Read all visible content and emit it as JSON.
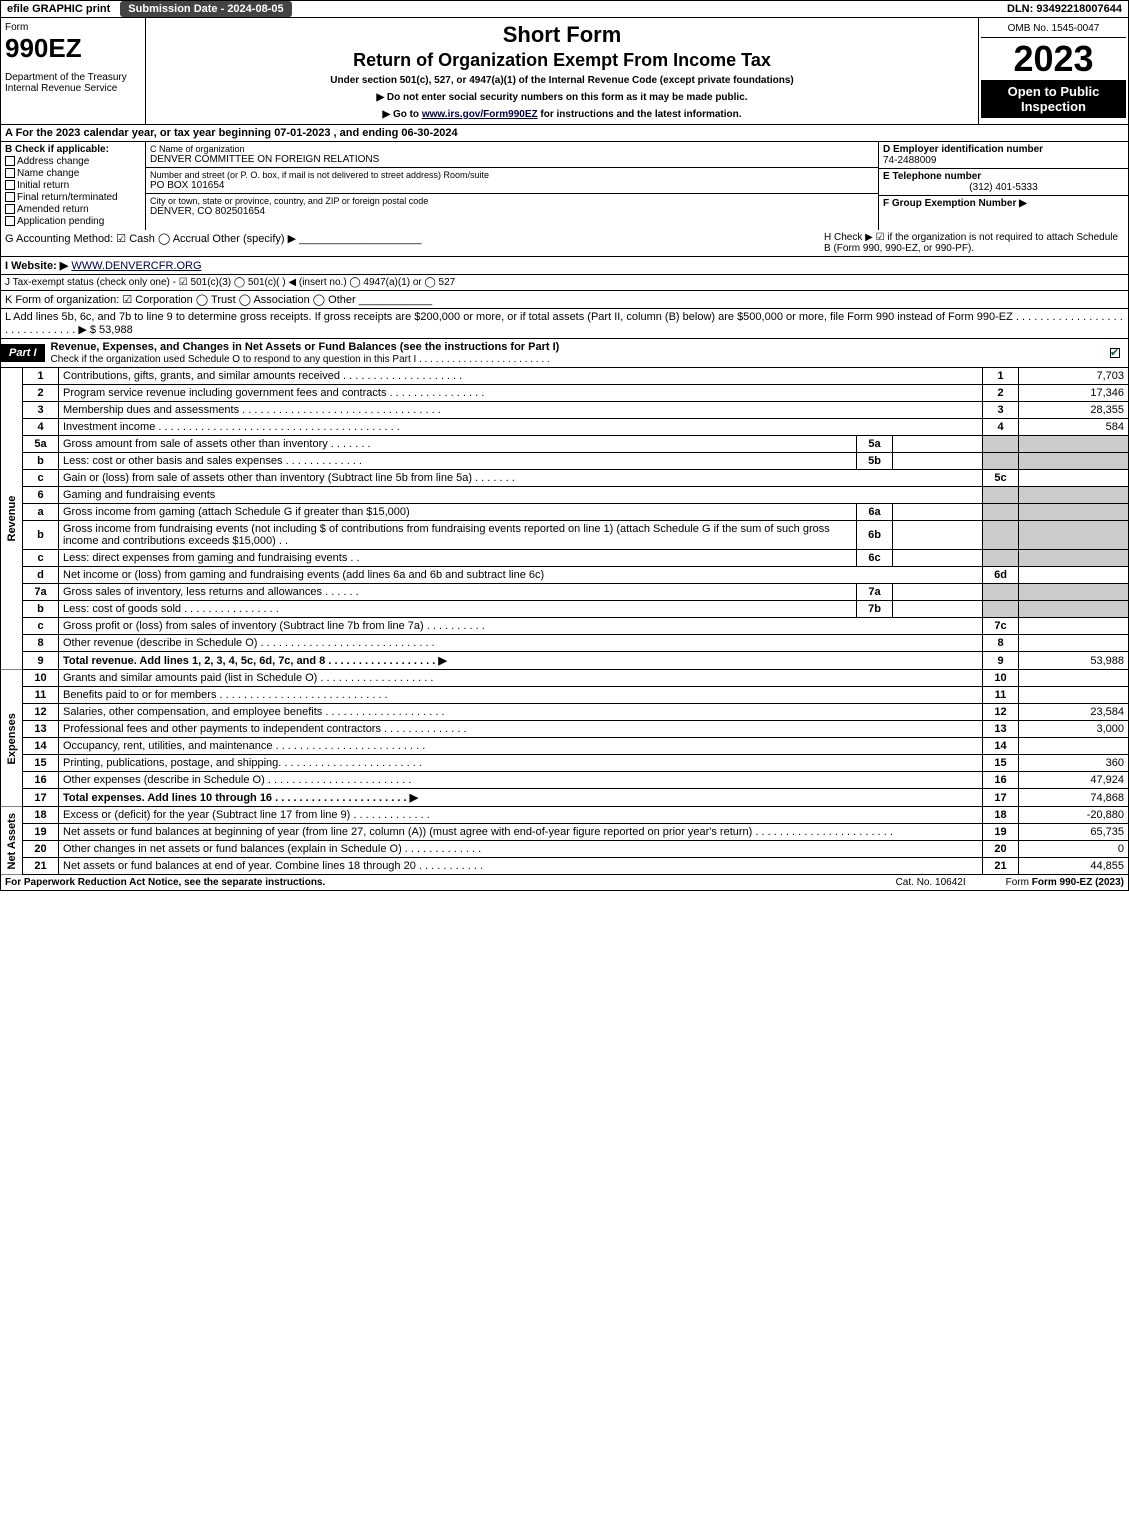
{
  "topbar": {
    "efile": "efile GRAPHIC print",
    "subdate": "Submission Date - 2024-08-05",
    "dln": "DLN: 93492218007644"
  },
  "header": {
    "form_label": "Form",
    "form_num": "990EZ",
    "dept": "Department of the Treasury\nInternal Revenue Service",
    "title1": "Short Form",
    "title2": "Return of Organization Exempt From Income Tax",
    "subtitle": "Under section 501(c), 527, or 4947(a)(1) of the Internal Revenue Code (except private foundations)",
    "instr1": "▶ Do not enter social security numbers on this form as it may be made public.",
    "instr2_pre": "▶ Go to ",
    "instr2_link": "www.irs.gov/Form990EZ",
    "instr2_post": " for instructions and the latest information.",
    "omb": "OMB No. 1545-0047",
    "year": "2023",
    "open": "Open to Public Inspection"
  },
  "section_a": "A  For the 2023 calendar year, or tax year beginning 07-01-2023 , and ending 06-30-2024",
  "col_b": {
    "title": "B  Check if applicable:",
    "opts": [
      "Address change",
      "Name change",
      "Initial return",
      "Final return/terminated",
      "Amended return",
      "Application pending"
    ]
  },
  "col_c": {
    "name_lbl": "C Name of organization",
    "name_val": "DENVER COMMITTEE ON FOREIGN RELATIONS",
    "addr_lbl": "Number and street (or P. O. box, if mail is not delivered to street address)      Room/suite",
    "addr_val": "PO BOX 101654",
    "city_lbl": "City or town, state or province, country, and ZIP or foreign postal code",
    "city_val": "DENVER, CO  802501654"
  },
  "col_de": {
    "d_lbl": "D Employer identification number",
    "d_val": "74-2488009",
    "e_lbl": "E Telephone number",
    "e_val": "(312) 401-5333",
    "f_lbl": "F Group Exemption Number  ▶"
  },
  "line_g": "G Accounting Method:   ☑ Cash  ◯ Accrual   Other (specify) ▶ ____________________",
  "line_h": "H   Check ▶ ☑ if the organization is not required to attach Schedule B (Form 990, 990-EZ, or 990-PF).",
  "line_i_pre": "I Website: ▶",
  "line_i_link": "WWW.DENVERCFR.ORG",
  "line_j": "J Tax-exempt status (check only one) - ☑ 501(c)(3)  ◯ 501(c)(  ) ◀ (insert no.)  ◯ 4947(a)(1) or  ◯ 527",
  "line_k": "K Form of organization:  ☑ Corporation  ◯ Trust  ◯ Association  ◯ Other ____________",
  "line_l": "L Add lines 5b, 6c, and 7b to line 9 to determine gross receipts. If gross receipts are $200,000 or more, or if total assets (Part II, column (B) below) are $500,000 or more, file Form 990 instead of Form 990-EZ . . . . . . . . . . . . . . . . . . . . . . . . . . . . . . ▶ $ 53,988",
  "part1": {
    "badge": "Part I",
    "title": "Revenue, Expenses, and Changes in Net Assets or Fund Balances (see the instructions for Part I)",
    "subtitle": "Check if the organization used Schedule O to respond to any question in this Part I . . . . . . . . . . . . . . . . . . . . . . . ."
  },
  "sections": {
    "revenue": "Revenue",
    "expenses": "Expenses",
    "netassets": "Net Assets"
  },
  "rows": [
    {
      "n": "1",
      "d": "Contributions, gifts, grants, and similar amounts received . . . . . . . . . . . . . . . . . . . .",
      "rn": "1",
      "rv": "7,703"
    },
    {
      "n": "2",
      "d": "Program service revenue including government fees and contracts . . . . . . . . . . . . . . . .",
      "rn": "2",
      "rv": "17,346"
    },
    {
      "n": "3",
      "d": "Membership dues and assessments . . . . . . . . . . . . . . . . . . . . . . . . . . . . . . . . .",
      "rn": "3",
      "rv": "28,355"
    },
    {
      "n": "4",
      "d": "Investment income . . . . . . . . . . . . . . . . . . . . . . . . . . . . . . . . . . . . . . . .",
      "rn": "4",
      "rv": "584"
    },
    {
      "n": "5a",
      "d": "Gross amount from sale of assets other than inventory . . . . . . .",
      "sub": "5a",
      "sv": "",
      "shaded": true
    },
    {
      "n": "b",
      "d": "Less: cost or other basis and sales expenses . . . . . . . . . . . . .",
      "sub": "5b",
      "sv": "",
      "shaded": true
    },
    {
      "n": "c",
      "d": "Gain or (loss) from sale of assets other than inventory (Subtract line 5b from line 5a) . . . . . . .",
      "rn": "5c",
      "rv": ""
    },
    {
      "n": "6",
      "d": "Gaming and fundraising events",
      "shaded": true,
      "noval": true
    },
    {
      "n": "a",
      "d": "Gross income from gaming (attach Schedule G if greater than $15,000)",
      "sub": "6a",
      "sv": "",
      "shaded": true
    },
    {
      "n": "b",
      "d": "Gross income from fundraising events (not including $                 of contributions from fundraising events reported on line 1) (attach Schedule G if the sum of such gross income and contributions exceeds $15,000)   . .",
      "sub": "6b",
      "sv": "",
      "shaded": true
    },
    {
      "n": "c",
      "d": "Less: direct expenses from gaming and fundraising events   . .",
      "sub": "6c",
      "sv": "",
      "shaded": true
    },
    {
      "n": "d",
      "d": "Net income or (loss) from gaming and fundraising events (add lines 6a and 6b and subtract line 6c)",
      "rn": "6d",
      "rv": ""
    },
    {
      "n": "7a",
      "d": "Gross sales of inventory, less returns and allowances . . . . . .",
      "sub": "7a",
      "sv": "",
      "shaded": true
    },
    {
      "n": "b",
      "d": "Less: cost of goods sold        . . . . . . . . . . . . . . . .",
      "sub": "7b",
      "sv": "",
      "shaded": true
    },
    {
      "n": "c",
      "d": "Gross profit or (loss) from sales of inventory (Subtract line 7b from line 7a) . . . . . . . . . .",
      "rn": "7c",
      "rv": ""
    },
    {
      "n": "8",
      "d": "Other revenue (describe in Schedule O) . . . . . . . . . . . . . . . . . . . . . . . . . . . . .",
      "rn": "8",
      "rv": ""
    },
    {
      "n": "9",
      "d": "Total revenue. Add lines 1, 2, 3, 4, 5c, 6d, 7c, and 8  . . . . . . . . . . . . . . . . . .   ▶",
      "rn": "9",
      "rv": "53,988",
      "bold": true
    }
  ],
  "exp_rows": [
    {
      "n": "10",
      "d": "Grants and similar amounts paid (list in Schedule O) . . . . . . . . . . . . . . . . . . .",
      "rn": "10",
      "rv": ""
    },
    {
      "n": "11",
      "d": "Benefits paid to or for members    . . . . . . . . . . . . . . . . . . . . . . . . . . . .",
      "rn": "11",
      "rv": ""
    },
    {
      "n": "12",
      "d": "Salaries, other compensation, and employee benefits . . . . . . . . . . . . . . . . . . . .",
      "rn": "12",
      "rv": "23,584"
    },
    {
      "n": "13",
      "d": "Professional fees and other payments to independent contractors . . . . . . . . . . . . . .",
      "rn": "13",
      "rv": "3,000"
    },
    {
      "n": "14",
      "d": "Occupancy, rent, utilities, and maintenance . . . . . . . . . . . . . . . . . . . . . . . . .",
      "rn": "14",
      "rv": ""
    },
    {
      "n": "15",
      "d": "Printing, publications, postage, and shipping. . . . . . . . . . . . . . . . . . . . . . . .",
      "rn": "15",
      "rv": "360"
    },
    {
      "n": "16",
      "d": "Other expenses (describe in Schedule O)    . . . . . . . . . . . . . . . . . . . . . . . .",
      "rn": "16",
      "rv": "47,924"
    },
    {
      "n": "17",
      "d": "Total expenses. Add lines 10 through 16    . . . . . . . . . . . . . . . . . . . . . .  ▶",
      "rn": "17",
      "rv": "74,868",
      "bold": true
    }
  ],
  "na_rows": [
    {
      "n": "18",
      "d": "Excess or (deficit) for the year (Subtract line 17 from line 9)       . . . . . . . . . . . . .",
      "rn": "18",
      "rv": "-20,880"
    },
    {
      "n": "19",
      "d": "Net assets or fund balances at beginning of year (from line 27, column (A)) (must agree with end-of-year figure reported on prior year's return) . . . . . . . . . . . . . . . . . . . . . . .",
      "rn": "19",
      "rv": "65,735"
    },
    {
      "n": "20",
      "d": "Other changes in net assets or fund balances (explain in Schedule O) . . . . . . . . . . . . .",
      "rn": "20",
      "rv": "0"
    },
    {
      "n": "21",
      "d": "Net assets or fund balances at end of year. Combine lines 18 through 20 . . . . . . . . . . .",
      "rn": "21",
      "rv": "44,855"
    }
  ],
  "footer": {
    "left": "For Paperwork Reduction Act Notice, see the separate instructions.",
    "cat": "Cat. No. 10642I",
    "form": "Form 990-EZ (2023)"
  }
}
